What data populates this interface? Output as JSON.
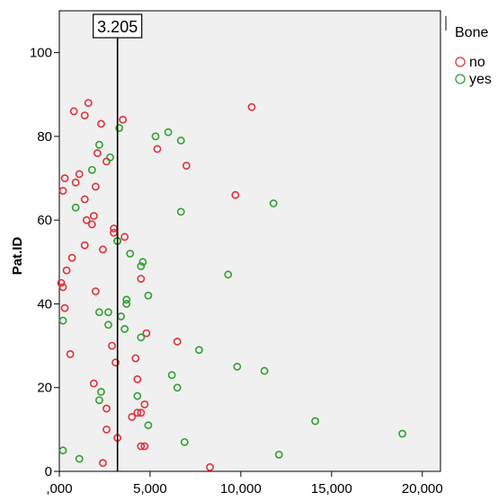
{
  "chart_data": {
    "type": "scatter",
    "title": "",
    "xlabel": "",
    "ylabel": "Pat.ID",
    "xlim": [
      0,
      21000
    ],
    "ylim": [
      0,
      110
    ],
    "xticks": [
      0,
      5000,
      10000,
      15000,
      20000
    ],
    "xtick_labels": [
      ",000",
      "5,000",
      "10,000",
      "15,000",
      "20,000"
    ],
    "yticks": [
      0,
      20,
      40,
      60,
      80,
      100
    ],
    "ytick_labels": [
      "0",
      "20",
      "40",
      "60",
      "80",
      "100"
    ],
    "grid": false,
    "background": "#f0f0f0",
    "legend": {
      "title": "Bone",
      "placement": "right-top"
    },
    "reference_line": {
      "x": 3205,
      "label": "3.205"
    },
    "series": [
      {
        "name": "no",
        "color": "#e0303a",
        "points": [
          [
            8300,
            1
          ],
          [
            2400,
            2
          ],
          [
            4700,
            6
          ],
          [
            3200,
            8
          ],
          [
            2600,
            10
          ],
          [
            4700,
            16
          ],
          [
            4800,
            33
          ],
          [
            6500,
            31
          ],
          [
            2600,
            15
          ],
          [
            4300,
            14
          ],
          [
            4500,
            14
          ],
          [
            4000,
            13
          ],
          [
            4300,
            22
          ],
          [
            3100,
            26
          ],
          [
            2900,
            30
          ],
          [
            4200,
            27
          ],
          [
            1900,
            21
          ],
          [
            600,
            28
          ],
          [
            300,
            39
          ],
          [
            200,
            44
          ],
          [
            100,
            45
          ],
          [
            400,
            48
          ],
          [
            700,
            51
          ],
          [
            2000,
            43
          ],
          [
            2400,
            53
          ],
          [
            3600,
            56
          ],
          [
            3200,
            55
          ],
          [
            3000,
            57
          ],
          [
            3000,
            58
          ],
          [
            1400,
            54
          ],
          [
            1900,
            61
          ],
          [
            1800,
            59
          ],
          [
            1500,
            60
          ],
          [
            1400,
            65
          ],
          [
            1100,
            71
          ],
          [
            300,
            70
          ],
          [
            900,
            69
          ],
          [
            2000,
            68
          ],
          [
            200,
            67
          ],
          [
            1400,
            85
          ],
          [
            1600,
            88
          ],
          [
            800,
            86
          ],
          [
            2300,
            83
          ],
          [
            3500,
            84
          ],
          [
            2100,
            76
          ],
          [
            2600,
            74
          ],
          [
            5400,
            77
          ],
          [
            7000,
            73
          ],
          [
            9700,
            66
          ],
          [
            10600,
            87
          ],
          [
            4500,
            46
          ],
          [
            4500,
            6
          ]
        ]
      },
      {
        "name": "yes",
        "color": "#2ea02e",
        "points": [
          [
            200,
            5
          ],
          [
            1100,
            3
          ],
          [
            2700,
            38
          ],
          [
            2700,
            35
          ],
          [
            2200,
            38
          ],
          [
            3400,
            37
          ],
          [
            3600,
            34
          ],
          [
            3700,
            40
          ],
          [
            3700,
            41
          ],
          [
            4900,
            42
          ],
          [
            3900,
            52
          ],
          [
            4500,
            49
          ],
          [
            4600,
            50
          ],
          [
            4500,
            32
          ],
          [
            3200,
            55
          ],
          [
            2200,
            17
          ],
          [
            2300,
            19
          ],
          [
            4900,
            11
          ],
          [
            4300,
            18
          ],
          [
            6200,
            23
          ],
          [
            6500,
            20
          ],
          [
            6900,
            7
          ],
          [
            7700,
            29
          ],
          [
            9800,
            25
          ],
          [
            11300,
            24
          ],
          [
            12100,
            4
          ],
          [
            14100,
            12
          ],
          [
            18900,
            9
          ],
          [
            9300,
            47
          ],
          [
            6700,
            62
          ],
          [
            11800,
            64
          ],
          [
            5300,
            80
          ],
          [
            6000,
            81
          ],
          [
            6700,
            79
          ],
          [
            3300,
            82
          ],
          [
            2800,
            75
          ],
          [
            2200,
            78
          ],
          [
            1800,
            72
          ],
          [
            900,
            63
          ],
          [
            200,
            36
          ]
        ]
      }
    ]
  }
}
